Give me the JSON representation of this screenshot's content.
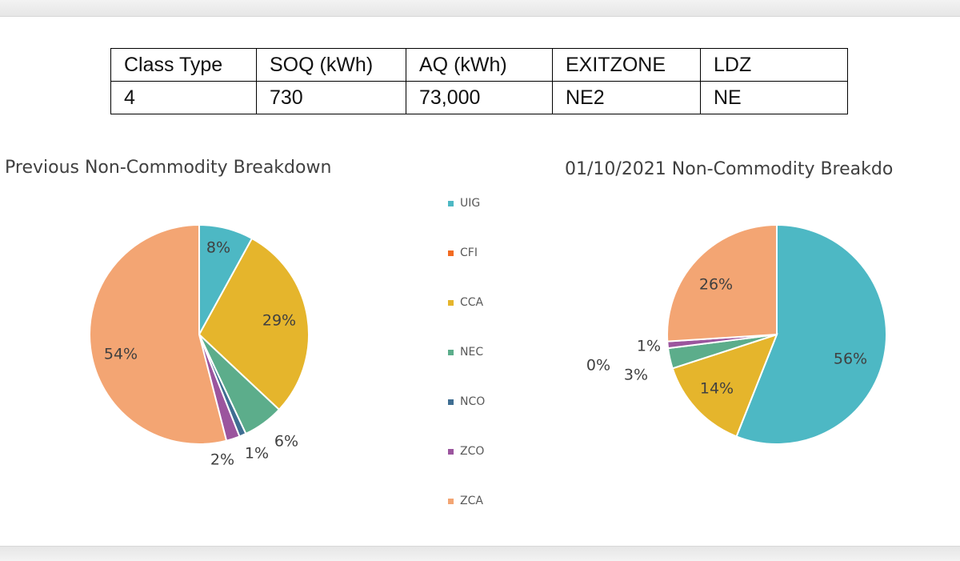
{
  "table": {
    "headers": [
      "Class Type",
      "SOQ (kWh)",
      "AQ (kWh)",
      "EXITZONE",
      "LDZ"
    ],
    "rows": [
      [
        "4",
        "730",
        "73,000",
        "NE2",
        "NE"
      ]
    ]
  },
  "colors": {
    "UIG": "#4db8c4",
    "CFI": "#f26b21",
    "CCA": "#e5b52c",
    "NEC": "#5cad8b",
    "NCO": "#3f6e92",
    "ZCO": "#9b559e",
    "ZCA": "#f3a573"
  },
  "legend": [
    "UIG",
    "CFI",
    "CCA",
    "NEC",
    "NCO",
    "ZCO",
    "ZCA"
  ],
  "chart_data": [
    {
      "type": "pie",
      "title": "Previous Non-Commodity Breakdown",
      "labels": [
        "UIG",
        "CFI",
        "CCA",
        "NEC",
        "NCO",
        "ZCO",
        "ZCA"
      ],
      "values": [
        8,
        0,
        29,
        6,
        1,
        2,
        54
      ],
      "data_labels": [
        "8%",
        "",
        "29%",
        "6%",
        "1%",
        "2%",
        "54%"
      ]
    },
    {
      "type": "pie",
      "title": "01/10/2021 Non-Commodity Breakdo",
      "labels": [
        "UIG",
        "CFI",
        "CCA",
        "NEC",
        "NCO",
        "ZCO",
        "ZCA"
      ],
      "values": [
        56,
        0,
        14,
        3,
        0,
        1,
        26
      ],
      "data_labels": [
        "56%",
        "",
        "14%",
        "3%",
        "0%",
        "1%",
        "26%"
      ]
    }
  ]
}
